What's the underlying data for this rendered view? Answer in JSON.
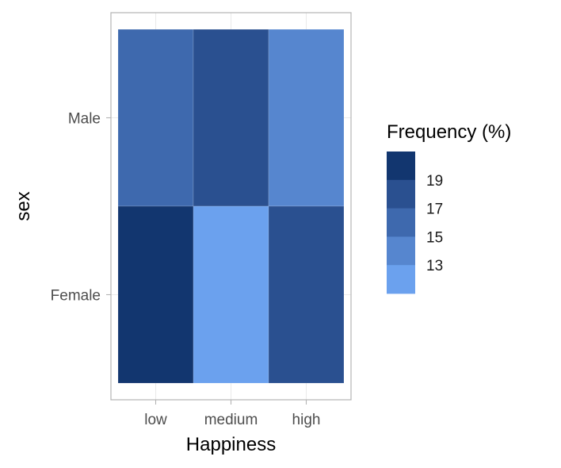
{
  "chart_data": {
    "type": "heatmap",
    "title": "",
    "xlabel": "Happiness",
    "ylabel": "sex",
    "x_categories": [
      "low",
      "medium",
      "high"
    ],
    "y_categories": [
      "Male",
      "Female"
    ],
    "cells": [
      {
        "x": "low",
        "y": "Male",
        "value": 15.5,
        "color": "#3e69ae"
      },
      {
        "x": "medium",
        "y": "Male",
        "value": 17.5,
        "color": "#2a5090"
      },
      {
        "x": "high",
        "y": "Male",
        "value": 14,
        "color": "#5686cf"
      },
      {
        "x": "low",
        "y": "Female",
        "value": 19.5,
        "color": "#12366f"
      },
      {
        "x": "medium",
        "y": "Female",
        "value": 12.5,
        "color": "#6ba1ee"
      },
      {
        "x": "high",
        "y": "Female",
        "value": 17.5,
        "color": "#2a5090"
      }
    ],
    "legend": {
      "title": "Frequency (%)",
      "placement": "right",
      "bins": [
        "#12366f",
        "#2a5090",
        "#3e69ae",
        "#5686cf",
        "#6ba1ee"
      ],
      "labels": [
        "19",
        "17",
        "15",
        "13"
      ]
    },
    "grid": true
  }
}
